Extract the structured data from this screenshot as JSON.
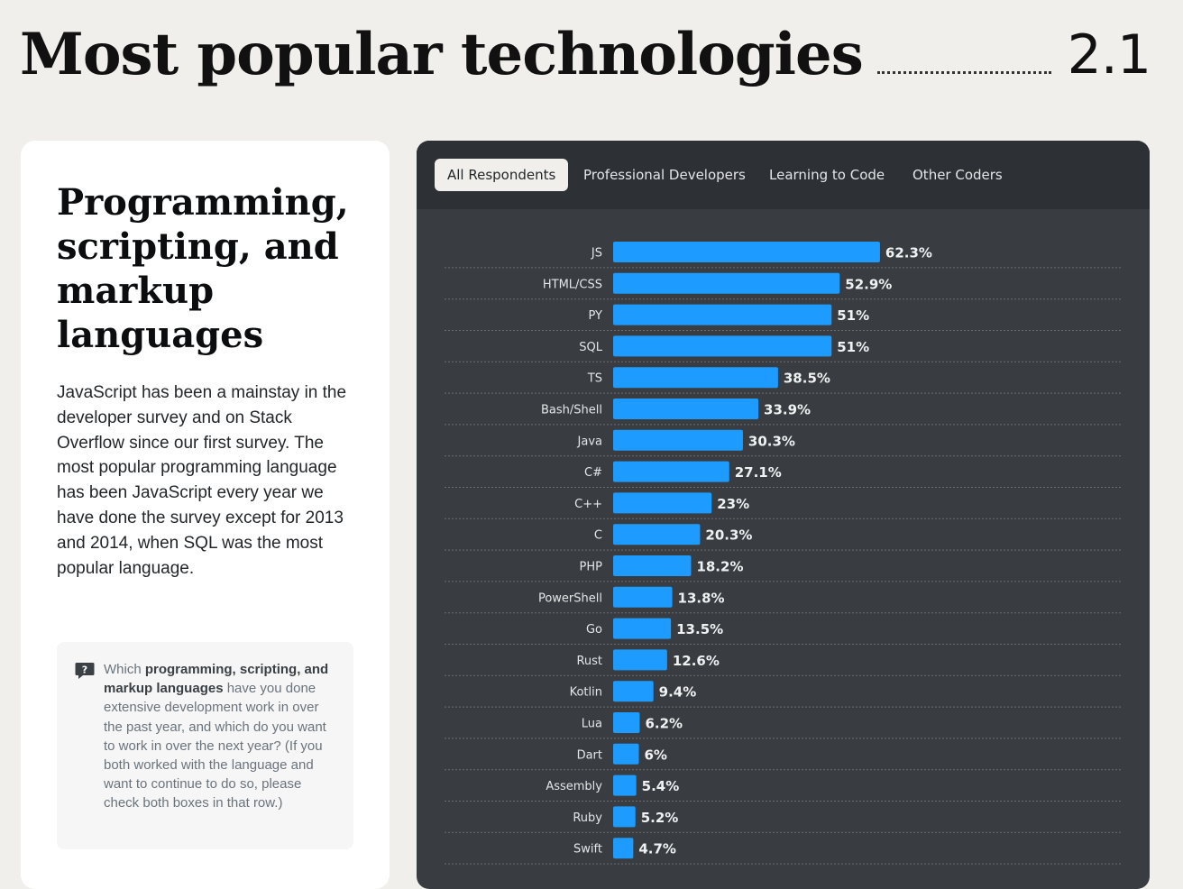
{
  "header": {
    "title": "Most popular technologies",
    "section_number": "2.1"
  },
  "left_panel": {
    "heading": "Programming, scripting, and markup languages",
    "description": "JavaScript has been a mainstay in the developer survey and on Stack Overflow since our first survey. The most popular programming language has been JavaScript every year we have done the survey except for 2013 and 2014, when SQL was the most popular language.",
    "question": {
      "icon": "question-icon",
      "prefix": "Which ",
      "bold": "programming, scripting, and markup languages",
      "suffix": " have you done extensive development work in over the past year, and which do you want to work in over the next year? (If you both worked with the language and want to continue to do so, please check both boxes in that row.)"
    }
  },
  "tabs": [
    {
      "label": "All Respondents",
      "active": true
    },
    {
      "label": "Professional Developers",
      "active": false
    },
    {
      "label": "Learning to Code",
      "active": false
    },
    {
      "label": "Other Coders",
      "active": false
    }
  ],
  "colors": {
    "bar": "#1e9bff",
    "card_bg": "#393d41",
    "tabbar_bg": "#2d3034",
    "page_bg": "#f0efeb"
  },
  "chart_data": {
    "type": "bar",
    "orientation": "horizontal",
    "categories": [
      "JS",
      "HTML/CSS",
      "PY",
      "SQL",
      "TS",
      "Bash/Shell",
      "Java",
      "C#",
      "C++",
      "C",
      "PHP",
      "PowerShell",
      "Go",
      "Rust",
      "Kotlin",
      "Lua",
      "Dart",
      "Assembly",
      "Ruby",
      "Swift"
    ],
    "values": [
      62.3,
      52.9,
      51,
      51,
      38.5,
      33.9,
      30.3,
      27.1,
      23,
      20.3,
      18.2,
      13.8,
      13.5,
      12.6,
      9.4,
      6.2,
      6,
      5.4,
      5.2,
      4.7
    ],
    "value_labels": [
      "62.3%",
      "52.9%",
      "51%",
      "51%",
      "38.5%",
      "33.9%",
      "30.3%",
      "27.1%",
      "23%",
      "20.3%",
      "18.2%",
      "13.8%",
      "13.5%",
      "12.6%",
      "9.4%",
      "6.2%",
      "6%",
      "5.4%",
      "5.2%",
      "4.7%"
    ],
    "unit": "%",
    "xlim": [
      0,
      100
    ],
    "grid": "dotted row separators"
  }
}
